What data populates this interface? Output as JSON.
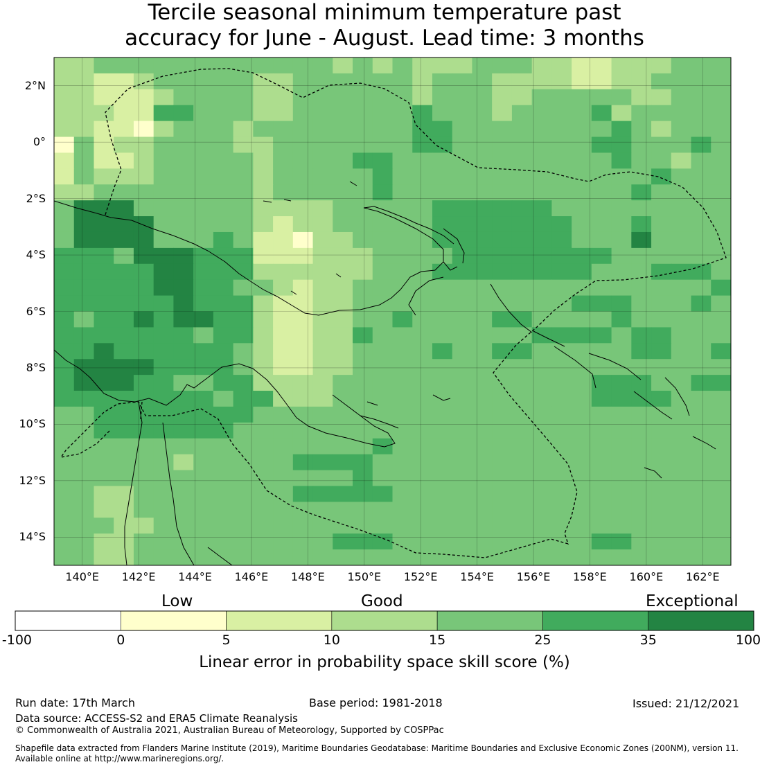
{
  "title": {
    "line1": "Tercile seasonal minimum temperature past",
    "line2": "accuracy for June - August. Lead time: 3 months"
  },
  "map": {
    "lat_labels": [
      "2°N",
      "0°",
      "2°S",
      "4°S",
      "6°S",
      "8°S",
      "10°S",
      "12°S",
      "14°S"
    ],
    "lon_labels": [
      "140°E",
      "142°E",
      "144°E",
      "146°E",
      "148°E",
      "150°E",
      "152°E",
      "154°E",
      "156°E",
      "158°E",
      "160°E",
      "162°E"
    ],
    "grid_lines": "on",
    "lat_range": [
      -15,
      3
    ],
    "lon_range": [
      139,
      163
    ]
  },
  "legend": {
    "category_labels": [
      "Low",
      "Good",
      "Exceptional"
    ],
    "tick_labels": [
      "-100",
      "0",
      "5",
      "10",
      "15",
      "25",
      "35",
      "100"
    ],
    "colors": [
      "#ffffff",
      "#ffffcc",
      "#d9f0a3",
      "#addd8e",
      "#78c679",
      "#41ab5d",
      "#238443"
    ],
    "title": "Linear error in probability space skill score (%)"
  },
  "footer": {
    "run_date": "Run date: 17th March",
    "base_period": "Base period: 1981-2018",
    "issued": "Issued: 21/12/2021",
    "data_source": "Data source: ACCESS-S2 and ERA5 Climate Reanalysis",
    "copyright": "© Commonwealth of Australia 2021, Australian Bureau of Meteorology, Supported by COSPPac",
    "shapefile_line1": "Shapefile data extracted from Flanders Marine Institute (2019), Maritime Boundaries Geodatabase: Maritime Boundaries and Exclusive Economic Zones (200NM), version 11.",
    "shapefile_line2": "Available online at http://www.marineregions.org/."
  }
}
